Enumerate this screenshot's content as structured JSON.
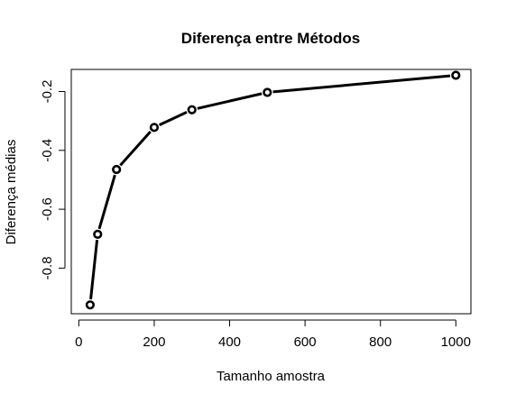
{
  "chart_data": {
    "type": "line",
    "title": "Diferença entre Métodos",
    "xlabel": "Tamanho amostra",
    "ylabel": "Diferença médias",
    "x": [
      30,
      50,
      100,
      200,
      300,
      500,
      1000
    ],
    "series": [
      {
        "values": [
          -0.925,
          -0.685,
          -0.465,
          -0.322,
          -0.262,
          -0.203,
          -0.145
        ]
      }
    ],
    "xlim": [
      -20,
      1040
    ],
    "ylim": [
      -0.955,
      -0.125
    ],
    "xticks": [
      "0",
      "200",
      "400",
      "600",
      "800",
      "1000"
    ],
    "yticks": [
      "-0.8",
      "-0.6",
      "-0.4",
      "-0.2"
    ],
    "grid": false,
    "legend": "none",
    "markers": "open-circle",
    "color": "#000000"
  }
}
